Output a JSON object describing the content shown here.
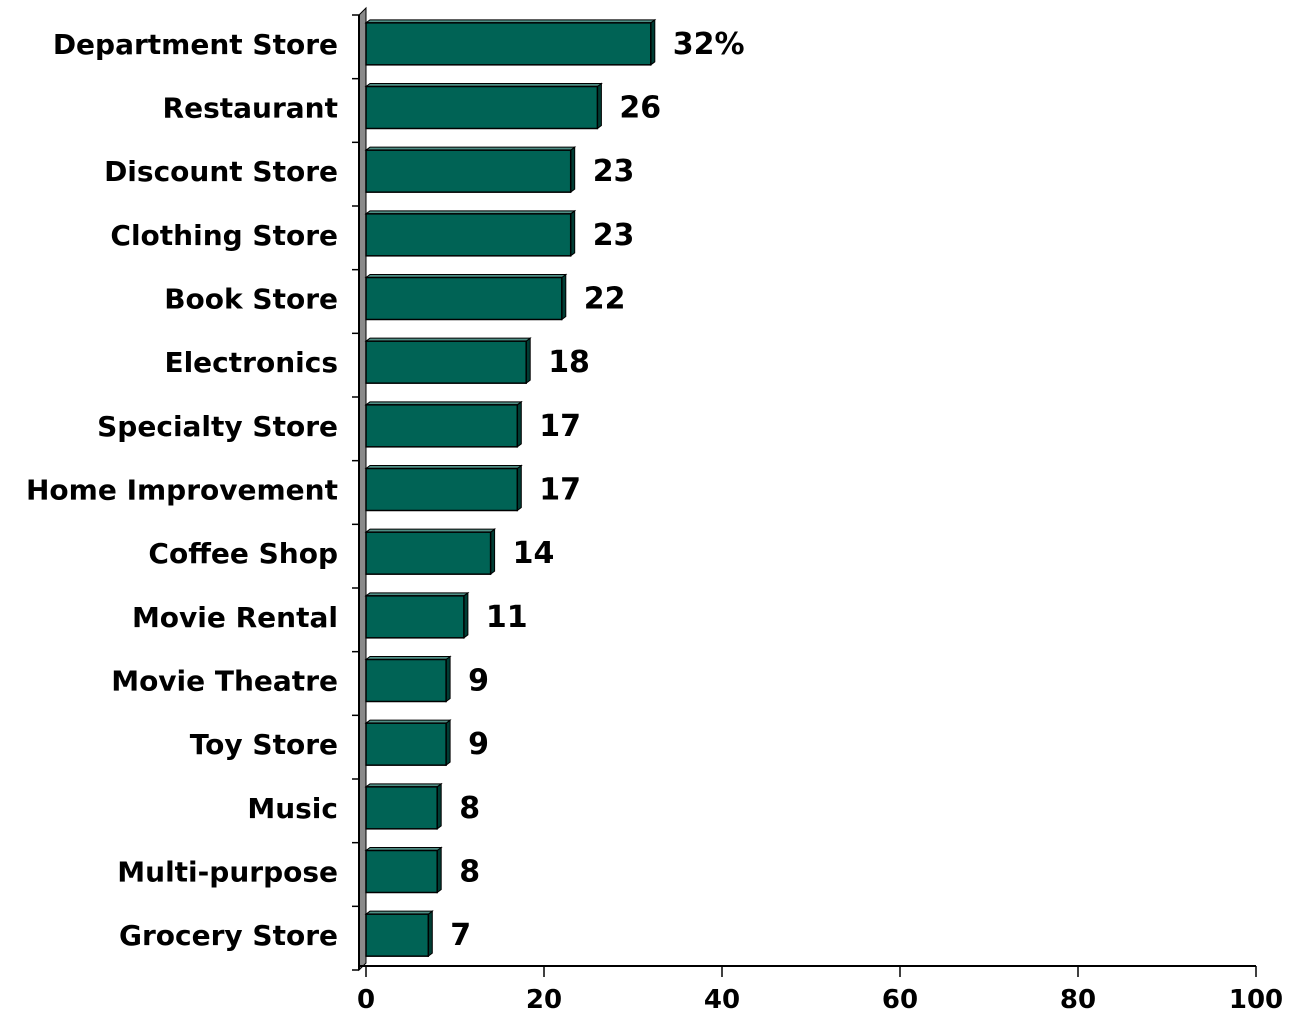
{
  "chart_data": {
    "type": "bar",
    "orientation": "horizontal",
    "categories": [
      "Department Store",
      "Restaurant",
      "Discount Store",
      "Clothing Store",
      "Book Store",
      "Electronics",
      "Specialty Store",
      "Home Improvement",
      "Coffee Shop",
      "Movie Rental",
      "Movie Theatre",
      "Toy Store",
      "Music",
      "Multi-purpose",
      "Grocery Store"
    ],
    "values": [
      32,
      26,
      23,
      23,
      22,
      18,
      17,
      17,
      14,
      11,
      9,
      9,
      8,
      8,
      7
    ],
    "data_labels": [
      "32%",
      "26",
      "23",
      "23",
      "22",
      "18",
      "17",
      "17",
      "14",
      "11",
      "9",
      "9",
      "8",
      "8",
      "7"
    ],
    "x_ticks": [
      "0",
      "20",
      "40",
      "60",
      "80",
      "100"
    ],
    "xlim": [
      0,
      100
    ],
    "title": "",
    "xlabel": "",
    "ylabel": "",
    "grid": false,
    "legend": "none",
    "bar_color": "#006355",
    "bar_side_color": "#003d34",
    "wall_color": "#8a8a8a"
  }
}
